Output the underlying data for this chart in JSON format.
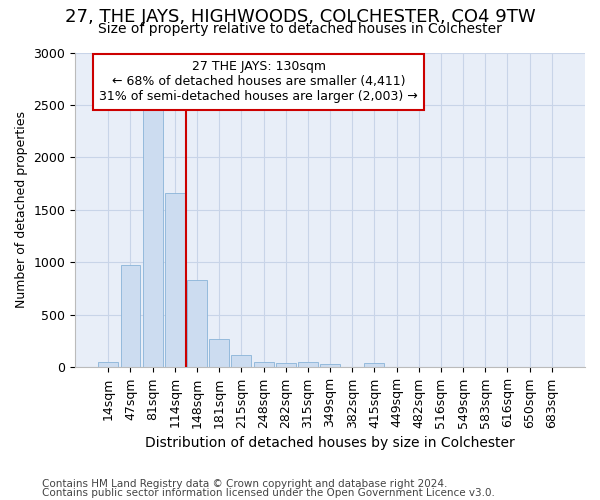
{
  "title": "27, THE JAYS, HIGHWOODS, COLCHESTER, CO4 9TW",
  "subtitle": "Size of property relative to detached houses in Colchester",
  "xlabel": "Distribution of detached houses by size in Colchester",
  "ylabel": "Number of detached properties",
  "footnote1": "Contains HM Land Registry data © Crown copyright and database right 2024.",
  "footnote2": "Contains public sector information licensed under the Open Government Licence v3.0.",
  "categories": [
    "14sqm",
    "47sqm",
    "81sqm",
    "114sqm",
    "148sqm",
    "181sqm",
    "215sqm",
    "248sqm",
    "282sqm",
    "315sqm",
    "349sqm",
    "382sqm",
    "415sqm",
    "449sqm",
    "482sqm",
    "516sqm",
    "549sqm",
    "583sqm",
    "616sqm",
    "650sqm",
    "683sqm"
  ],
  "values": [
    55,
    980,
    2460,
    1660,
    830,
    270,
    115,
    55,
    40,
    50,
    35,
    0,
    45,
    0,
    0,
    0,
    0,
    0,
    0,
    0,
    0
  ],
  "bar_color": "#ccdcf0",
  "bar_edge_color": "#8ab4d8",
  "grid_color": "#c8d4e8",
  "bg_color": "#e8eef8",
  "vline_color": "#cc0000",
  "vline_pos": 3.5,
  "annotation_text": "27 THE JAYS: 130sqm\n← 68% of detached houses are smaller (4,411)\n31% of semi-detached houses are larger (2,003) →",
  "annotation_box_color": "#cc0000",
  "ylim": [
    0,
    3000
  ],
  "yticks": [
    0,
    500,
    1000,
    1500,
    2000,
    2500,
    3000
  ],
  "title_fontsize": 13,
  "subtitle_fontsize": 10,
  "xlabel_fontsize": 10,
  "ylabel_fontsize": 9,
  "tick_fontsize": 9,
  "annot_fontsize": 9,
  "footnote_fontsize": 7.5
}
